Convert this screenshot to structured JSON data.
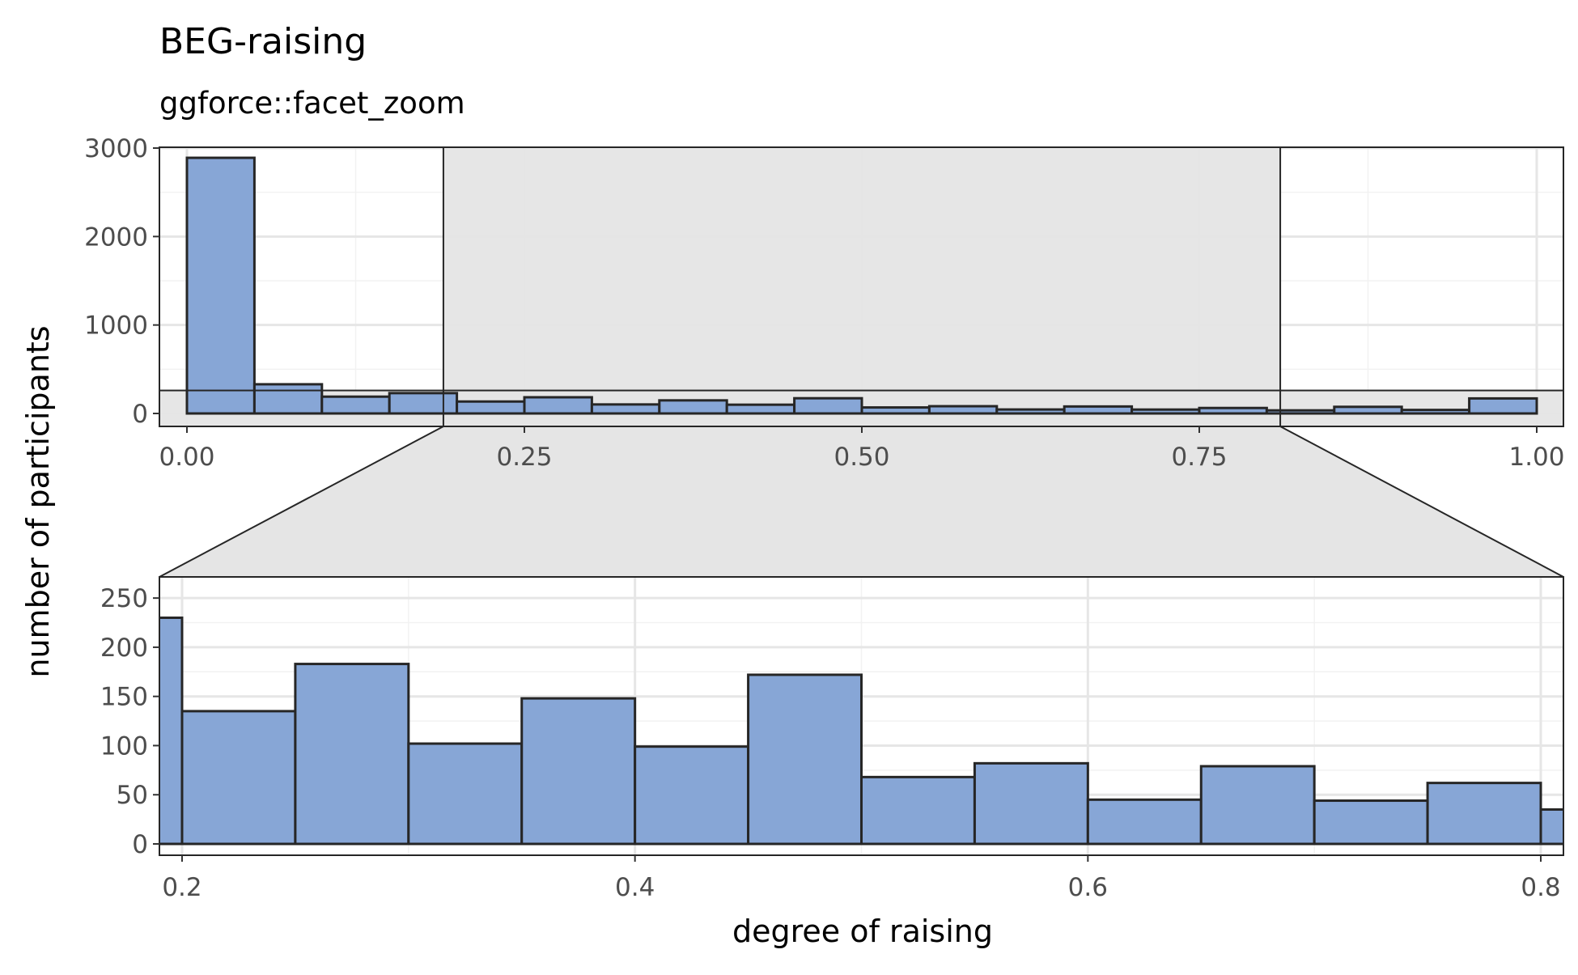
{
  "colors": {
    "bar_fill": "#87a6d6",
    "bar_stroke": "#262626",
    "zoom_region": "#e5e5e5",
    "grid_major": "#e6e6e6",
    "grid_minor": "#f2f2f2",
    "panel_border": "#262626",
    "tick_text": "#4d4d4d"
  },
  "chart_data": {
    "type": "bar",
    "title": "BEG-raising",
    "subtitle": "ggforce::facet_zoom",
    "xlabel": "degree of raising",
    "ylabel": "number of participants",
    "grid": true,
    "bin_width": 0.05,
    "bins_start": [
      0.0,
      0.05,
      0.1,
      0.15,
      0.2,
      0.25,
      0.3,
      0.35,
      0.4,
      0.45,
      0.5,
      0.55,
      0.6,
      0.65,
      0.7,
      0.75,
      0.8,
      0.85,
      0.9,
      0.95
    ],
    "values": [
      2890,
      330,
      190,
      230,
      135,
      183,
      102,
      148,
      99,
      172,
      68,
      82,
      45,
      79,
      44,
      62,
      35,
      75,
      40,
      170
    ],
    "overview_panel": {
      "xlim": [
        0,
        1
      ],
      "ylim": [
        0,
        3000
      ],
      "x_ticks": [
        "0.00",
        "0.25",
        "0.50",
        "0.75",
        "1.00"
      ],
      "y_ticks": [
        "0",
        "1000",
        "2000",
        "3000"
      ],
      "zoom_x_range": [
        0.19,
        0.81
      ],
      "zoom_y_range": [
        0,
        260
      ]
    },
    "zoom_panel": {
      "xlim": [
        0.19,
        0.81
      ],
      "ylim": [
        0,
        260
      ],
      "x_ticks": [
        "0.2",
        "0.4",
        "0.6",
        "0.8"
      ],
      "y_ticks": [
        "0",
        "50",
        "100",
        "150",
        "200",
        "250"
      ]
    }
  }
}
